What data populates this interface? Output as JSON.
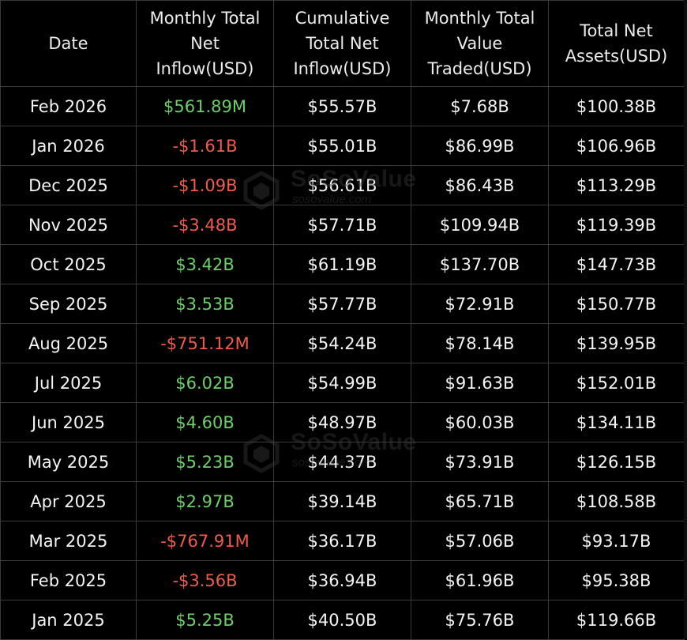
{
  "table": {
    "headers": [
      "Date",
      "Monthly Total Net Inflow(USD)",
      "Cumulative Total Net Inflow(USD)",
      "Monthly Total Value Traded(USD)",
      "Total Net Assets(USD)"
    ],
    "rows": [
      [
        "Feb 2026",
        "$561.89M",
        "$55.57B",
        "$7.68B",
        "$100.38B"
      ],
      [
        "Jan 2026",
        "-$1.61B",
        "$55.01B",
        "$86.99B",
        "$106.96B"
      ],
      [
        "Dec 2025",
        "-$1.09B",
        "$56.61B",
        "$86.43B",
        "$113.29B"
      ],
      [
        "Nov 2025",
        "-$3.48B",
        "$57.71B",
        "$109.94B",
        "$119.39B"
      ],
      [
        "Oct 2025",
        "$3.42B",
        "$61.19B",
        "$137.70B",
        "$147.73B"
      ],
      [
        "Sep 2025",
        "$3.53B",
        "$57.77B",
        "$72.91B",
        "$150.77B"
      ],
      [
        "Aug 2025",
        "-$751.12M",
        "$54.24B",
        "$78.14B",
        "$139.95B"
      ],
      [
        "Jul 2025",
        "$6.02B",
        "$54.99B",
        "$91.63B",
        "$152.01B"
      ],
      [
        "Jun 2025",
        "$4.60B",
        "$48.97B",
        "$60.03B",
        "$134.11B"
      ],
      [
        "May 2025",
        "$5.23B",
        "$44.37B",
        "$73.91B",
        "$126.15B"
      ],
      [
        "Apr 2025",
        "$2.97B",
        "$39.14B",
        "$65.71B",
        "$108.58B"
      ],
      [
        "Mar 2025",
        "-$767.91M",
        "$36.17B",
        "$57.06B",
        "$93.17B"
      ],
      [
        "Feb 2025",
        "-$3.56B",
        "$36.94B",
        "$61.96B",
        "$95.38B"
      ],
      [
        "Jan 2025",
        "$5.25B",
        "$40.50B",
        "$75.76B",
        "$119.66B"
      ]
    ]
  },
  "watermark": {
    "brand": "SoSoValue",
    "site": "sosovalue.com",
    "icon": "sosovalue-logo-icon"
  },
  "colors": {
    "background": "#000000",
    "text": "#f4f4f4",
    "positive": "#6ccf6a",
    "negative": "#ef5b4e",
    "grid": "#3a3a3a"
  }
}
